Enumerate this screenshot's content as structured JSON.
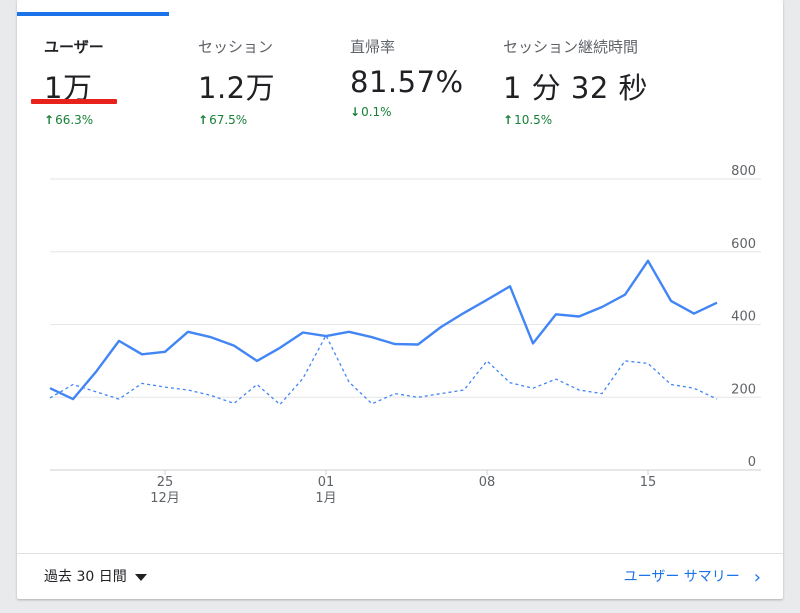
{
  "metrics": [
    {
      "label": "ユーザー",
      "value": "1万",
      "change": "66.3%",
      "direction": "up"
    },
    {
      "label": "セッション",
      "value": "1.2万",
      "change": "67.5%",
      "direction": "up"
    },
    {
      "label": "直帰率",
      "value": "81.57%",
      "change": "0.1%",
      "direction": "down"
    },
    {
      "label": "セッション継続時間",
      "value": "1 分 32 秒",
      "change": "10.5%",
      "direction": "up"
    }
  ],
  "footer": {
    "range_label": "過去 30 日間",
    "summary_link": "ユーザー サマリー",
    "chevron": "›"
  },
  "colors": {
    "accent": "#1a73e8",
    "active_underline": "#e8221a",
    "positive": "#188038"
  },
  "chart_data": {
    "type": "line",
    "x_ticks": [
      {
        "index": 5,
        "label": "25",
        "sublabel": "12月"
      },
      {
        "index": 12,
        "label": "01",
        "sublabel": "1月"
      },
      {
        "index": 19,
        "label": "08",
        "sublabel": ""
      },
      {
        "index": 26,
        "label": "15",
        "sublabel": ""
      }
    ],
    "y_ticks": [
      0,
      200,
      400,
      600,
      800
    ],
    "ylim": [
      0,
      800
    ],
    "y_axis_position": "right",
    "grid": true,
    "series": [
      {
        "style": "solid",
        "values": [
          225,
          195,
          270,
          355,
          318,
          325,
          380,
          365,
          342,
          300,
          336,
          378,
          368,
          380,
          365,
          346,
          345,
          393,
          432,
          468,
          505,
          348,
          428,
          422,
          448,
          482,
          575,
          465,
          430,
          460
        ]
      },
      {
        "style": "dashed",
        "values": [
          198,
          235,
          215,
          195,
          238,
          228,
          220,
          205,
          183,
          235,
          180,
          252,
          370,
          242,
          182,
          210,
          200,
          210,
          220,
          300,
          240,
          225,
          250,
          220,
          210,
          300,
          293,
          235,
          225,
          195
        ]
      }
    ]
  }
}
